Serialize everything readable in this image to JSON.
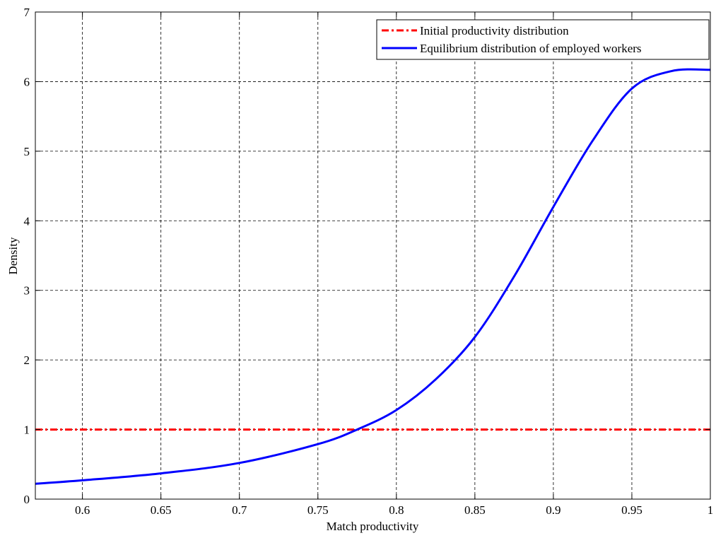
{
  "chart_data": {
    "type": "line",
    "title": "",
    "xlabel": "Match productivity",
    "ylabel": "Density",
    "xlim": [
      0.57,
      1.0
    ],
    "ylim": [
      0,
      7
    ],
    "grid": true,
    "legend_position": "top-right",
    "x_ticks": [
      0.6,
      0.65,
      0.7,
      0.75,
      0.8,
      0.85,
      0.9,
      0.95,
      1
    ],
    "x_tick_labels": [
      "0.6",
      "0.65",
      "0.7",
      "0.75",
      "0.8",
      "0.85",
      "0.9",
      "0.95",
      "1"
    ],
    "y_ticks": [
      0,
      1,
      2,
      3,
      4,
      5,
      6,
      7
    ],
    "y_tick_labels": [
      "0",
      "1",
      "2",
      "3",
      "4",
      "5",
      "6",
      "7"
    ],
    "series": [
      {
        "name": "Initial productivity distribution",
        "color": "#ff0000",
        "style": "dash-dot",
        "x": [
          0.57,
          1.0
        ],
        "y": [
          1.0,
          1.0
        ]
      },
      {
        "name": "Equilibrium distribution of employed workers",
        "color": "#0000ff",
        "style": "solid",
        "x": [
          0.57,
          0.6,
          0.65,
          0.7,
          0.75,
          0.775,
          0.8,
          0.825,
          0.85,
          0.875,
          0.9,
          0.925,
          0.95,
          0.975,
          1.0
        ],
        "y": [
          0.22,
          0.27,
          0.37,
          0.52,
          0.79,
          1.0,
          1.28,
          1.72,
          2.33,
          3.2,
          4.2,
          5.15,
          5.9,
          6.15,
          6.17
        ]
      }
    ]
  }
}
